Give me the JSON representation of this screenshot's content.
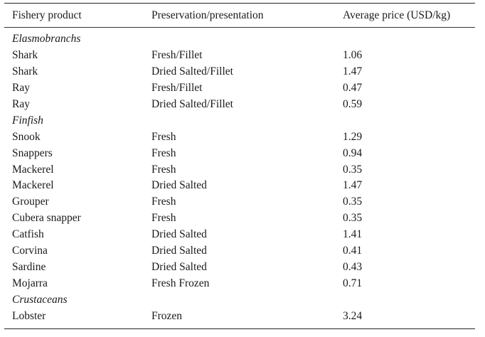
{
  "table": {
    "headers": [
      "Fishery product",
      "Preservation/presentation",
      "Average price (USD/kg)"
    ],
    "sections": [
      {
        "title": "Elasmobranchs",
        "rows": [
          [
            "Shark",
            "Fresh/Fillet",
            "1.06"
          ],
          [
            "Shark",
            "Dried Salted/Fillet",
            "1.47"
          ],
          [
            "Ray",
            "Fresh/Fillet",
            "0.47"
          ],
          [
            "Ray",
            "Dried Salted/Fillet",
            "0.59"
          ]
        ]
      },
      {
        "title": "Finfish",
        "rows": [
          [
            "Snook",
            "Fresh",
            "1.29"
          ],
          [
            "Snappers",
            "Fresh",
            "0.94"
          ],
          [
            "Mackerel",
            "Fresh",
            "0.35"
          ],
          [
            "Mackerel",
            "Dried Salted",
            "1.47"
          ],
          [
            "Grouper",
            "Fresh",
            "0.35"
          ],
          [
            "Cubera snapper",
            "Fresh",
            "0.35"
          ],
          [
            "Catfish",
            "Dried Salted",
            "1.41"
          ],
          [
            "Corvina",
            "Dried Salted",
            "0.41"
          ],
          [
            "Sardine",
            "Dried Salted",
            "0.43"
          ],
          [
            "Mojarra",
            "Fresh Frozen",
            "0.71"
          ]
        ]
      },
      {
        "title": "Crustaceans",
        "rows": [
          [
            "Lobster",
            "Frozen",
            "3.24"
          ]
        ]
      }
    ]
  }
}
